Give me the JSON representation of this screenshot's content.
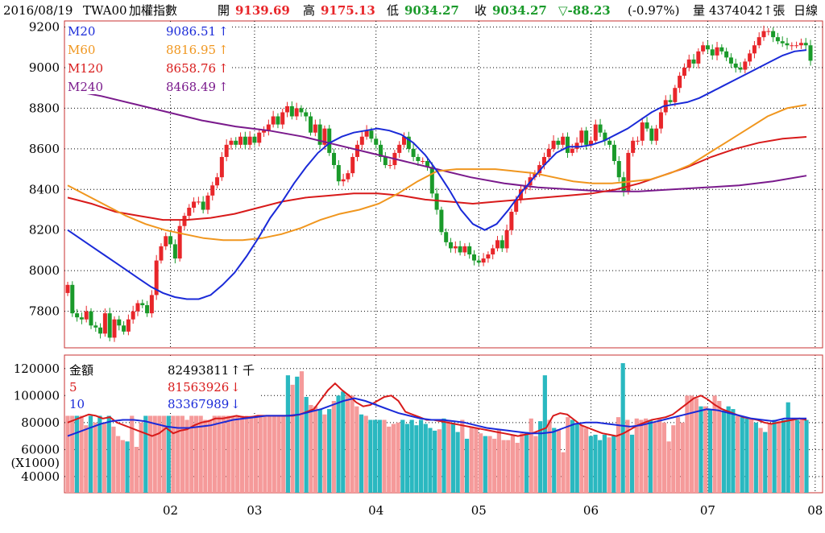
{
  "header": {
    "date": "2016/08/19",
    "symbol": "TWA00",
    "name": "加權指數",
    "open_label": "開",
    "open_value": "9139.69",
    "high_label": "高",
    "high_value": "9175.13",
    "low_label": "低",
    "low_value": "9034.27",
    "close_label": "收",
    "close_value": "9034.27",
    "change": "▽-88.23",
    "change_pct": "(-0.97%)",
    "volume_label": "量",
    "volume_value": "4374042↑張",
    "period": "日線"
  },
  "colors": {
    "up": "#e8262a",
    "down": "#1a9a2a",
    "ma20": "#1a2ad8",
    "ma60": "#f0961e",
    "ma120": "#d81a1a",
    "ma240": "#7a1a8c",
    "vol_up": "#f59a9a",
    "vol_down": "#2ab8c0",
    "vol_ma5": "#d81a1a",
    "vol_ma10": "#1a2ad8",
    "frame": "#c83232",
    "grid": "#000"
  },
  "chart_data": [
    {
      "type": "candlestick",
      "title": "TWA00 加權指數",
      "ylim": [
        7620,
        9230
      ],
      "yticks": [
        7800,
        8000,
        8200,
        8400,
        8600,
        8800,
        9000,
        9200
      ],
      "xtick_labels": [
        "02",
        "03",
        "04",
        "05",
        "06",
        "07",
        "08"
      ],
      "xtick_index": [
        22,
        40,
        66,
        88,
        112,
        137,
        160
      ],
      "legend": [
        {
          "name": "M20",
          "value": "9086.51",
          "arrow": "↑",
          "color": "#1a2ad8"
        },
        {
          "name": "M60",
          "value": "8816.95",
          "arrow": "↑",
          "color": "#f0961e"
        },
        {
          "name": "M120",
          "value": "8658.76",
          "arrow": "↑",
          "color": "#d81a1a"
        },
        {
          "name": "M240",
          "value": "8468.49",
          "arrow": "↑",
          "color": "#7a1a8c"
        }
      ],
      "closes": [
        7930,
        7790,
        7770,
        7760,
        7800,
        7730,
        7720,
        7690,
        7790,
        7670,
        7760,
        7730,
        7700,
        7760,
        7800,
        7840,
        7830,
        7790,
        7880,
        8050,
        8120,
        8170,
        8130,
        8060,
        8220,
        8270,
        8310,
        8340,
        8340,
        8300,
        8370,
        8420,
        8460,
        8560,
        8620,
        8640,
        8620,
        8660,
        8620,
        8660,
        8630,
        8680,
        8690,
        8720,
        8760,
        8720,
        8780,
        8810,
        8760,
        8800,
        8780,
        8760,
        8680,
        8720,
        8620,
        8700,
        8580,
        8520,
        8440,
        8450,
        8480,
        8560,
        8620,
        8660,
        8690,
        8650,
        8620,
        8560,
        8520,
        8520,
        8580,
        8620,
        8660,
        8600,
        8560,
        8540,
        8540,
        8510,
        8380,
        8300,
        8190,
        8140,
        8110,
        8120,
        8090,
        8120,
        8080,
        8050,
        8040,
        8060,
        8080,
        8110,
        8150,
        8110,
        8200,
        8290,
        8350,
        8400,
        8420,
        8460,
        8480,
        8520,
        8560,
        8600,
        8640,
        8620,
        8660,
        8580,
        8600,
        8630,
        8690,
        8620,
        8640,
        8720,
        8680,
        8640,
        8620,
        8540,
        8460,
        8390,
        8580,
        8640,
        8640,
        8730,
        8700,
        8640,
        8700,
        8780,
        8840,
        8830,
        8900,
        8960,
        9000,
        9040,
        9020,
        9080,
        9110,
        9090,
        9060,
        9100,
        9080,
        9050,
        9020,
        9000,
        8990,
        9030,
        9070,
        9110,
        9150,
        9180,
        9180,
        9150,
        9130,
        9120,
        9110,
        9110,
        9110,
        9122,
        9110,
        9034
      ],
      "ma20": [
        8200,
        8160,
        8120,
        8080,
        8040,
        8000,
        7960,
        7920,
        7890,
        7870,
        7860,
        7860,
        7880,
        7930,
        7990,
        8070,
        8160,
        8260,
        8340,
        8430,
        8510,
        8580,
        8630,
        8660,
        8680,
        8690,
        8700,
        8690,
        8670,
        8630,
        8570,
        8490,
        8400,
        8300,
        8230,
        8200,
        8230,
        8300,
        8380,
        8450,
        8520,
        8580,
        8610,
        8610,
        8620,
        8640,
        8670,
        8700,
        8740,
        8780,
        8810,
        8820,
        8830,
        8850,
        8880,
        8910,
        8940,
        8970,
        9000,
        9030,
        9060,
        9080,
        9087
      ],
      "ma60": [
        8420,
        8370,
        8320,
        8270,
        8230,
        8200,
        8180,
        8160,
        8150,
        8150,
        8160,
        8180,
        8210,
        8250,
        8280,
        8300,
        8330,
        8380,
        8440,
        8490,
        8500,
        8500,
        8500,
        8490,
        8480,
        8460,
        8440,
        8430,
        8430,
        8440,
        8450,
        8480,
        8520,
        8580,
        8640,
        8700,
        8760,
        8800,
        8817
      ],
      "ma120": [
        8360,
        8330,
        8290,
        8270,
        8250,
        8250,
        8260,
        8280,
        8310,
        8340,
        8360,
        8370,
        8380,
        8380,
        8370,
        8350,
        8340,
        8330,
        8340,
        8350,
        8360,
        8370,
        8380,
        8400,
        8430,
        8470,
        8510,
        8560,
        8600,
        8630,
        8650,
        8659
      ],
      "ma240": [
        8890,
        8860,
        8820,
        8780,
        8740,
        8710,
        8690,
        8660,
        8620,
        8580,
        8540,
        8500,
        8460,
        8430,
        8410,
        8400,
        8390,
        8390,
        8400,
        8410,
        8420,
        8440,
        8468
      ]
    },
    {
      "type": "bar",
      "title": "金額",
      "ylabel": "(X1000)",
      "ylim": [
        28000,
        130000
      ],
      "yticks": [
        40000,
        60000,
        80000,
        100000,
        120000
      ],
      "legend": [
        {
          "name": "金額",
          "value": "82493811",
          "arrow": "↑",
          "unit": "千",
          "color": "#000"
        },
        {
          "name": "5",
          "value": "81563926",
          "arrow": "↓",
          "color": "#d81a1a"
        },
        {
          "name": "10",
          "value": "83367989",
          "arrow": "↓",
          "color": "#1a2ad8"
        }
      ],
      "values": [
        85000,
        85000,
        85000,
        85000,
        78000,
        85000,
        80000,
        85000,
        80000,
        85000,
        77000,
        70000,
        67000,
        66000,
        85000,
        62000,
        80000,
        85000,
        85000,
        85000,
        85000,
        85000,
        85000,
        85000,
        85000,
        85000,
        82000,
        85000,
        85000,
        85000,
        82000,
        82000,
        85000,
        85000,
        85000,
        85000,
        85000,
        85000,
        85000,
        85000,
        85000,
        85000,
        85000,
        85000,
        85000,
        85000,
        85000,
        85000,
        115000,
        108000,
        114000,
        118000,
        99000,
        93000,
        92000,
        90000,
        86000,
        90000,
        96000,
        100000,
        103000,
        101000,
        100000,
        92000,
        86000,
        85000,
        82000,
        82000,
        82000,
        82000,
        77000,
        79000,
        80000,
        82000,
        79000,
        82000,
        78000,
        82000,
        79000,
        76000,
        74000,
        75000,
        83000,
        82000,
        80000,
        73000,
        82000,
        68000,
        77000,
        76000,
        72000,
        70000,
        70000,
        68000,
        75000,
        67000,
        67000,
        71000,
        65000,
        72000,
        73000,
        83000,
        70000,
        81000,
        115000,
        82000,
        76000,
        75000,
        58000,
        84000,
        82000,
        79000,
        78000,
        76000,
        70000,
        71000,
        67000,
        71000,
        69000,
        70000,
        84000,
        124000,
        82000,
        71000,
        83000,
        82000,
        83000,
        82000,
        80000,
        83000,
        80000,
        66000,
        78000,
        84000,
        80000,
        100000,
        100000,
        98000,
        92000,
        92000,
        90000,
        100000,
        96000,
        89000,
        92000,
        90000,
        85000,
        84000,
        83000,
        83000,
        80000,
        76000,
        73000,
        79000,
        82000,
        81000,
        82000,
        95000,
        82000,
        82000,
        83000,
        82000
      ],
      "vol_up": [
        true,
        true,
        false,
        true,
        true,
        false,
        true,
        false,
        true,
        false,
        true,
        true,
        true,
        false,
        true,
        true,
        true,
        false,
        true,
        true,
        true,
        true,
        false,
        true,
        true,
        true,
        true,
        true,
        true,
        true,
        true,
        true,
        true,
        true,
        true,
        true,
        true,
        true,
        true,
        true,
        true,
        true,
        true,
        true,
        true,
        true,
        true,
        true,
        false,
        true,
        false,
        true,
        false,
        true,
        true,
        false,
        true,
        false,
        true,
        false,
        false,
        true,
        true,
        true,
        false,
        true,
        false,
        false,
        false,
        true,
        true,
        true,
        true,
        false,
        false,
        false,
        false,
        false,
        false,
        false,
        false,
        true,
        false,
        true,
        false,
        false,
        true,
        false,
        true,
        true,
        true,
        false,
        true,
        true,
        true,
        true,
        true,
        true,
        true,
        true,
        false,
        true,
        true,
        false,
        false,
        true,
        false,
        true,
        true,
        true,
        false,
        false,
        true,
        true,
        false,
        false,
        false,
        false,
        true,
        false,
        true,
        false,
        true,
        false,
        true,
        true,
        true,
        false,
        true,
        true,
        true,
        true,
        true,
        true,
        true,
        true,
        true,
        true,
        false,
        true,
        false,
        true,
        true,
        false,
        false,
        false,
        true,
        false,
        false,
        true,
        false,
        true,
        false,
        true,
        false,
        true,
        false,
        false,
        true,
        false,
        true,
        false
      ],
      "ma5": [
        80000,
        82000,
        84000,
        86000,
        85000,
        83000,
        84000,
        80000,
        78000,
        76000,
        74000,
        72000,
        70000,
        72000,
        76000,
        72000,
        74000,
        75000,
        78000,
        80000,
        81000,
        83000,
        83000,
        84000,
        85000,
        84000,
        84000,
        85000,
        85000,
        85000,
        85000,
        85000,
        85000,
        86000,
        88000,
        90000,
        97000,
        104000,
        109000,
        104000,
        100000,
        95000,
        92000,
        93000,
        96000,
        99000,
        100000,
        96000,
        88000,
        86000,
        84000,
        82000,
        82000,
        81000,
        80000,
        79000,
        78000,
        77000,
        76000,
        75000,
        74000,
        73000,
        72000,
        71000,
        70000,
        71000,
        72000,
        74000,
        76000,
        85000,
        87000,
        86000,
        82000,
        78000,
        76000,
        74000,
        72000,
        71000,
        70000,
        72000,
        75000,
        78000,
        80000,
        82000,
        83000,
        84000,
        86000,
        90000,
        94000,
        98000,
        100000,
        97000,
        93000,
        90000,
        88000,
        86000,
        84000,
        83000,
        82000,
        80000,
        79000,
        80000,
        81000,
        82000,
        83000,
        82000
      ],
      "ma10": [
        70000,
        73000,
        76000,
        79000,
        81000,
        82000,
        82000,
        81000,
        79000,
        77000,
        76000,
        76000,
        77000,
        78000,
        80000,
        82000,
        83000,
        84000,
        85000,
        85000,
        85000,
        86000,
        88000,
        90000,
        93000,
        96000,
        98000,
        96000,
        93000,
        90000,
        87000,
        85000,
        83000,
        82000,
        82000,
        81000,
        80000,
        78000,
        76000,
        75000,
        74000,
        73000,
        72000,
        72000,
        73000,
        76000,
        79000,
        80000,
        80000,
        79000,
        78000,
        77000,
        78000,
        80000,
        82000,
        84000,
        86000,
        88000,
        90000,
        89000,
        87000,
        85000,
        83000,
        82000,
        81000,
        83000,
        83000,
        83000
      ]
    }
  ]
}
